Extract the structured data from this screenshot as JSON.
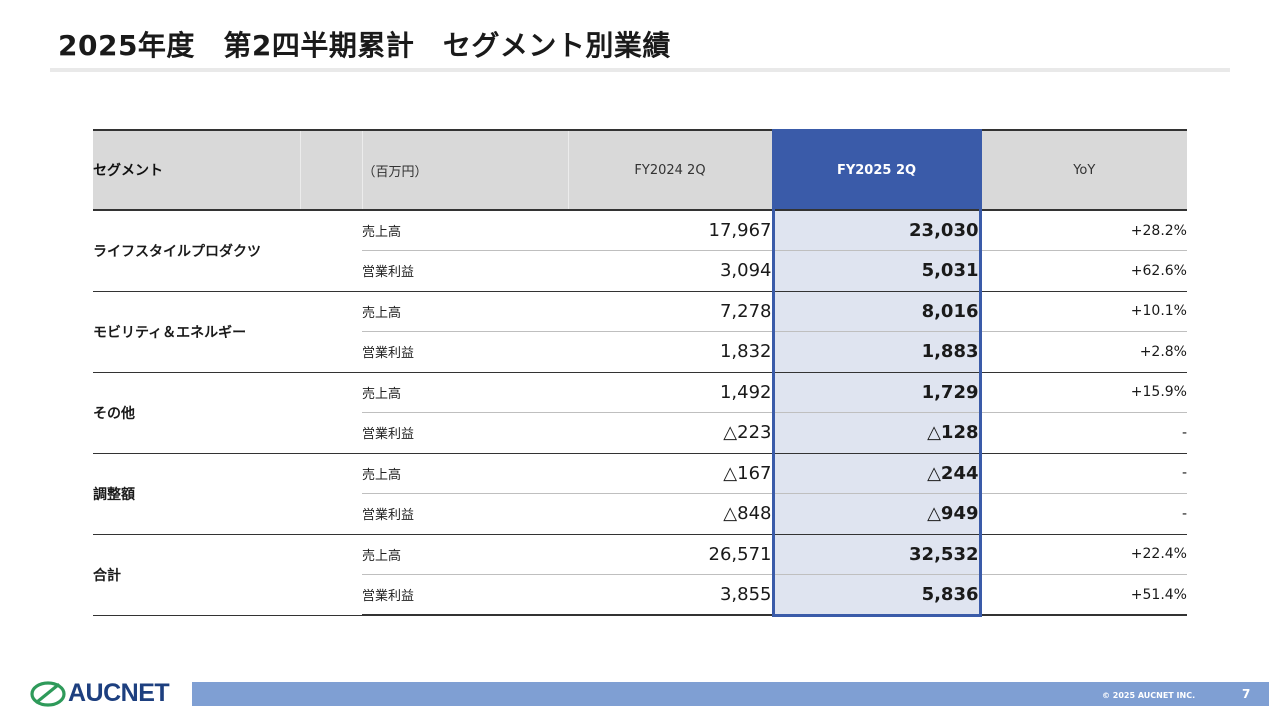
{
  "page": {
    "title": "2025年度　第2四半期累計　セグメント別業績",
    "copyright": "© 2025 AUCNET INC.",
    "page_number": "7",
    "logo_text": "AUCNET",
    "accent_color": "#3a5ba9",
    "footer_color": "#7f9fd3"
  },
  "table": {
    "headers": {
      "segment": "セグメント",
      "unit": "（百万円）",
      "prev": "FY2024 2Q",
      "cur": "FY2025 2Q",
      "yoy": "YoY"
    },
    "segments": [
      {
        "name": "ライフスタイルプロダクツ",
        "rows": [
          {
            "metric": "売上高",
            "prev": "17,967",
            "cur": "23,030",
            "yoy": "+28.2%"
          },
          {
            "metric": "営業利益",
            "prev": "3,094",
            "cur": "5,031",
            "yoy": "+62.6%"
          }
        ]
      },
      {
        "name": "モビリティ＆エネルギー",
        "rows": [
          {
            "metric": "売上高",
            "prev": "7,278",
            "cur": "8,016",
            "yoy": "+10.1%"
          },
          {
            "metric": "営業利益",
            "prev": "1,832",
            "cur": "1,883",
            "yoy": "+2.8%"
          }
        ]
      },
      {
        "name": "その他",
        "rows": [
          {
            "metric": "売上高",
            "prev": "1,492",
            "cur": "1,729",
            "yoy": "+15.9%"
          },
          {
            "metric": "営業利益",
            "prev": "△223",
            "cur": "△128",
            "yoy": "-"
          }
        ]
      },
      {
        "name": "調整額",
        "rows": [
          {
            "metric": "売上高",
            "prev": "△167",
            "cur": "△244",
            "yoy": "-"
          },
          {
            "metric": "営業利益",
            "prev": "△848",
            "cur": "△949",
            "yoy": "-"
          }
        ]
      },
      {
        "name": "合計",
        "rows": [
          {
            "metric": "売上高",
            "prev": "26,571",
            "cur": "32,532",
            "yoy": "+22.4%"
          },
          {
            "metric": "営業利益",
            "prev": "3,855",
            "cur": "5,836",
            "yoy": "+51.4%"
          }
        ]
      }
    ]
  }
}
